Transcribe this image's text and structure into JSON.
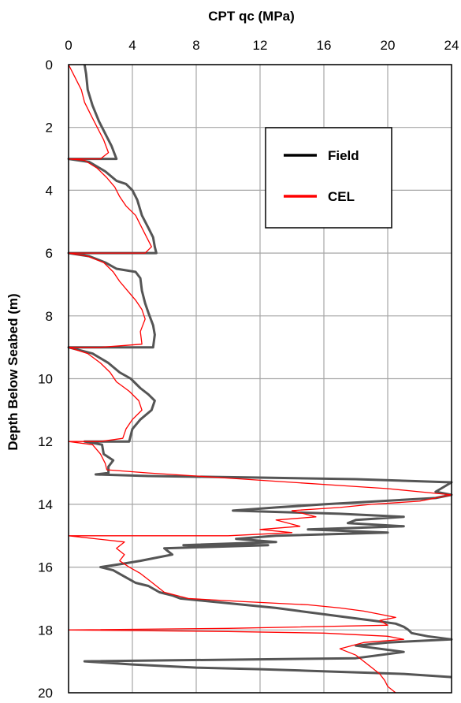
{
  "chart_data": {
    "type": "line",
    "title": "",
    "xlabel": "CPT qc (MPa)",
    "ylabel": "Depth Below Seabed (m)",
    "xlim": [
      0,
      24
    ],
    "ylim": [
      20,
      0
    ],
    "x_ticks": [
      0,
      4,
      8,
      12,
      16,
      20,
      24
    ],
    "y_ticks": [
      0,
      2,
      4,
      6,
      8,
      10,
      12,
      14,
      16,
      18,
      20
    ],
    "x_axis_position": "top",
    "y_axis_inverted": true,
    "grid": true,
    "legend": {
      "position": "top-right"
    },
    "series": [
      {
        "name": "Field",
        "color": "#555555",
        "points": [
          [
            1.0,
            0.0
          ],
          [
            1.1,
            0.3
          ],
          [
            1.2,
            0.8
          ],
          [
            1.5,
            1.3
          ],
          [
            1.9,
            1.8
          ],
          [
            2.3,
            2.2
          ],
          [
            2.7,
            2.6
          ],
          [
            3.0,
            3.0
          ],
          [
            0.0,
            3.0
          ],
          [
            1.3,
            3.1
          ],
          [
            2.3,
            3.4
          ],
          [
            3.0,
            3.7
          ],
          [
            3.6,
            3.8
          ],
          [
            4.0,
            4.0
          ],
          [
            4.3,
            4.3
          ],
          [
            4.6,
            4.8
          ],
          [
            5.0,
            5.2
          ],
          [
            5.3,
            5.5
          ],
          [
            5.4,
            5.8
          ],
          [
            5.5,
            6.0
          ],
          [
            0.0,
            6.0
          ],
          [
            1.3,
            6.1
          ],
          [
            2.3,
            6.3
          ],
          [
            3.0,
            6.5
          ],
          [
            4.2,
            6.6
          ],
          [
            4.5,
            6.8
          ],
          [
            4.6,
            7.2
          ],
          [
            4.8,
            7.6
          ],
          [
            5.0,
            7.9
          ],
          [
            5.3,
            8.3
          ],
          [
            5.4,
            8.6
          ],
          [
            5.3,
            9.0
          ],
          [
            0.0,
            9.0
          ],
          [
            1.5,
            9.2
          ],
          [
            2.5,
            9.5
          ],
          [
            3.2,
            9.8
          ],
          [
            3.9,
            10.0
          ],
          [
            4.5,
            10.3
          ],
          [
            5.0,
            10.5
          ],
          [
            5.4,
            10.7
          ],
          [
            5.2,
            11.0
          ],
          [
            4.5,
            11.3
          ],
          [
            4.0,
            11.6
          ],
          [
            3.8,
            12.0
          ],
          [
            1.0,
            12.0
          ],
          [
            2.1,
            12.1
          ],
          [
            2.2,
            12.4
          ],
          [
            2.8,
            12.6
          ],
          [
            2.5,
            12.8
          ],
          [
            2.5,
            13.0
          ],
          [
            1.7,
            13.05
          ],
          [
            5.0,
            13.1
          ],
          [
            12.0,
            13.15
          ],
          [
            18.0,
            13.2
          ],
          [
            24.0,
            13.3
          ],
          [
            23.0,
            13.6
          ],
          [
            24.0,
            13.7
          ],
          [
            23.0,
            13.8
          ],
          [
            16.0,
            14.0
          ],
          [
            13.0,
            14.1
          ],
          [
            10.3,
            14.2
          ],
          [
            17.0,
            14.3
          ],
          [
            21.0,
            14.4
          ],
          [
            18.0,
            14.5
          ],
          [
            17.5,
            14.6
          ],
          [
            21.0,
            14.7
          ],
          [
            15.0,
            14.8
          ],
          [
            20.0,
            14.9
          ],
          [
            13.0,
            15.0
          ],
          [
            10.5,
            15.1
          ],
          [
            13.0,
            15.2
          ],
          [
            7.2,
            15.3
          ],
          [
            12.5,
            15.3
          ],
          [
            6.0,
            15.4
          ],
          [
            6.5,
            15.6
          ],
          [
            5.5,
            15.7
          ],
          [
            4.5,
            15.8
          ],
          [
            3.3,
            15.9
          ],
          [
            2.0,
            16.0
          ],
          [
            2.8,
            16.1
          ],
          [
            3.5,
            16.3
          ],
          [
            4.2,
            16.5
          ],
          [
            5.0,
            16.6
          ],
          [
            5.7,
            16.8
          ],
          [
            6.5,
            16.9
          ],
          [
            7.0,
            17.0
          ],
          [
            9.0,
            17.1
          ],
          [
            11.0,
            17.2
          ],
          [
            13.0,
            17.3
          ],
          [
            14.5,
            17.4
          ],
          [
            16.0,
            17.5
          ],
          [
            17.5,
            17.6
          ],
          [
            19.0,
            17.7
          ],
          [
            20.5,
            17.8
          ],
          [
            21.0,
            17.9
          ],
          [
            21.3,
            18.0
          ],
          [
            21.5,
            18.1
          ],
          [
            22.5,
            18.2
          ],
          [
            24.0,
            18.3
          ],
          [
            20.0,
            18.4
          ],
          [
            18.0,
            18.5
          ],
          [
            21.0,
            18.7
          ],
          [
            18.0,
            18.9
          ],
          [
            1.0,
            19.0
          ],
          [
            4.0,
            19.1
          ],
          [
            8.0,
            19.2
          ],
          [
            12.0,
            19.25
          ],
          [
            15.0,
            19.3
          ],
          [
            18.0,
            19.35
          ],
          [
            21.0,
            19.4
          ],
          [
            24.0,
            19.5
          ]
        ]
      },
      {
        "name": "CEL",
        "color": "#ff0000",
        "points": [
          [
            0.0,
            0.0
          ],
          [
            0.4,
            0.4
          ],
          [
            0.8,
            0.8
          ],
          [
            1.0,
            1.2
          ],
          [
            1.4,
            1.6
          ],
          [
            1.8,
            2.0
          ],
          [
            2.2,
            2.4
          ],
          [
            2.5,
            2.8
          ],
          [
            2.0,
            3.0
          ],
          [
            0.0,
            3.0
          ],
          [
            1.0,
            3.05
          ],
          [
            1.8,
            3.3
          ],
          [
            2.4,
            3.6
          ],
          [
            2.9,
            3.9
          ],
          [
            3.2,
            4.2
          ],
          [
            3.6,
            4.5
          ],
          [
            4.2,
            4.8
          ],
          [
            4.6,
            5.2
          ],
          [
            4.9,
            5.5
          ],
          [
            5.2,
            5.8
          ],
          [
            4.8,
            6.0
          ],
          [
            0.0,
            6.0
          ],
          [
            1.2,
            6.1
          ],
          [
            2.2,
            6.3
          ],
          [
            2.8,
            6.6
          ],
          [
            3.2,
            6.9
          ],
          [
            3.7,
            7.2
          ],
          [
            4.2,
            7.5
          ],
          [
            4.6,
            7.8
          ],
          [
            4.8,
            8.1
          ],
          [
            4.5,
            8.5
          ],
          [
            4.6,
            8.9
          ],
          [
            2.0,
            9.0
          ],
          [
            0.0,
            9.0
          ],
          [
            1.2,
            9.2
          ],
          [
            2.0,
            9.5
          ],
          [
            2.6,
            9.8
          ],
          [
            3.0,
            10.1
          ],
          [
            3.8,
            10.4
          ],
          [
            4.4,
            10.7
          ],
          [
            4.6,
            11.0
          ],
          [
            4.0,
            11.3
          ],
          [
            3.6,
            11.6
          ],
          [
            3.4,
            11.9
          ],
          [
            2.0,
            12.0
          ],
          [
            0.0,
            12.0
          ],
          [
            1.5,
            12.1
          ],
          [
            2.0,
            12.4
          ],
          [
            2.3,
            12.7
          ],
          [
            2.4,
            12.9
          ],
          [
            5.0,
            13.0
          ],
          [
            8.0,
            13.1
          ],
          [
            11.0,
            13.2
          ],
          [
            14.0,
            13.3
          ],
          [
            17.0,
            13.4
          ],
          [
            20.0,
            13.5
          ],
          [
            22.0,
            13.6
          ],
          [
            24.0,
            13.7
          ],
          [
            22.0,
            13.9
          ],
          [
            19.0,
            14.0
          ],
          [
            17.0,
            14.1
          ],
          [
            14.0,
            14.2
          ],
          [
            15.5,
            14.4
          ],
          [
            13.0,
            14.5
          ],
          [
            14.5,
            14.7
          ],
          [
            12.0,
            14.8
          ],
          [
            14.0,
            14.9
          ],
          [
            10.0,
            15.0
          ],
          [
            0.0,
            15.0
          ],
          [
            3.5,
            15.2
          ],
          [
            3.0,
            15.4
          ],
          [
            3.5,
            15.6
          ],
          [
            3.2,
            15.8
          ],
          [
            3.8,
            16.0
          ],
          [
            4.5,
            16.2
          ],
          [
            5.0,
            16.4
          ],
          [
            5.5,
            16.6
          ],
          [
            6.0,
            16.8
          ],
          [
            7.5,
            17.0
          ],
          [
            11.0,
            17.1
          ],
          [
            15.0,
            17.2
          ],
          [
            17.0,
            17.3
          ],
          [
            18.5,
            17.4
          ],
          [
            19.5,
            17.5
          ],
          [
            20.5,
            17.6
          ],
          [
            19.5,
            17.7
          ],
          [
            20.0,
            17.85
          ],
          [
            10.0,
            17.95
          ],
          [
            0.0,
            18.0
          ],
          [
            10.0,
            18.05
          ],
          [
            16.0,
            18.1
          ],
          [
            20.0,
            18.2
          ],
          [
            21.0,
            18.3
          ],
          [
            18.5,
            18.4
          ],
          [
            17.0,
            18.6
          ],
          [
            18.0,
            18.8
          ],
          [
            18.5,
            19.0
          ],
          [
            19.0,
            19.2
          ],
          [
            19.5,
            19.4
          ],
          [
            19.8,
            19.6
          ],
          [
            20.0,
            19.8
          ],
          [
            20.5,
            20.0
          ]
        ]
      }
    ]
  }
}
